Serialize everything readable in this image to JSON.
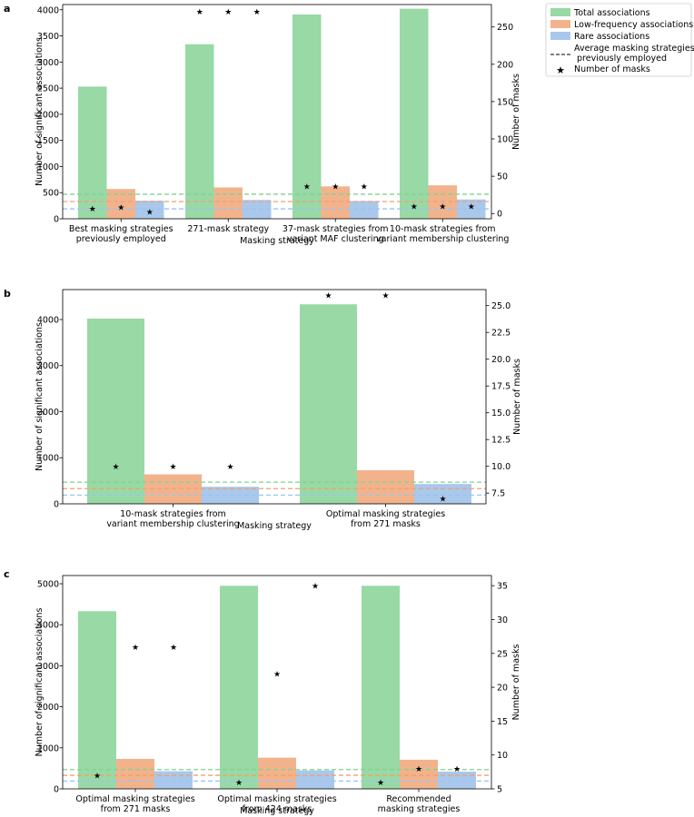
{
  "legend": {
    "total": "Total associations",
    "low": "Low-frequency associations",
    "rare": "Rare associations",
    "avg_line1": "Average masking strategies",
    "avg_line2": " previously employed",
    "masks": "Number of masks"
  },
  "colors": {
    "total": "#98d9a5",
    "low": "#f2b38c",
    "rare": "#a9c8ec",
    "avg_total": "#7fd38f",
    "avg_low": "#f0a070",
    "avg_rare": "#9cc3f0",
    "star": "#000000"
  },
  "chart_data": [
    {
      "type": "bar",
      "panel": "a",
      "xlabel": "Masking strategy",
      "ylabel": "Number of significant associations",
      "y2label": "Number of masks",
      "ylim": [
        0,
        4100
      ],
      "y2lim": [
        -7,
        280
      ],
      "yticks": [
        "0",
        "500",
        "1000",
        "1500",
        "2000",
        "2500",
        "3000",
        "3500",
        "4000"
      ],
      "y2ticks": [
        "0",
        "50",
        "100",
        "150",
        "200",
        "250"
      ],
      "categories": [
        [
          "Best masking strategies",
          "previously employed"
        ],
        [
          "271-mask strategy"
        ],
        [
          "37-mask strategies from",
          "variant MAF clustering"
        ],
        [
          "10-mask strategies from",
          "variant membership clustering"
        ]
      ],
      "series": [
        {
          "name": "Total associations",
          "key": "total",
          "values": [
            2530,
            3340,
            3910,
            4020
          ]
        },
        {
          "name": "Low-frequency associations",
          "key": "low",
          "values": [
            570,
            600,
            620,
            640
          ]
        },
        {
          "name": "Rare associations",
          "key": "rare",
          "values": [
            345,
            360,
            340,
            370
          ]
        }
      ],
      "masks": [
        [
          7,
          9,
          3
        ],
        [
          271,
          271,
          271
        ],
        [
          37,
          37,
          37
        ],
        [
          10,
          10,
          10
        ]
      ],
      "averages": {
        "total": 470,
        "low": 330,
        "rare": 190
      }
    },
    {
      "type": "bar",
      "panel": "b",
      "xlabel": "Masking strategy",
      "ylabel": "Number of significant associations",
      "y2label": "Number of masks",
      "ylim": [
        0,
        4650
      ],
      "y2lim": [
        6.5,
        26.5
      ],
      "yticks": [
        "0",
        "1000",
        "2000",
        "3000",
        "4000"
      ],
      "y2ticks": [
        "7.5",
        "10.0",
        "12.5",
        "15.0",
        "17.5",
        "20.0",
        "22.5",
        "25.0"
      ],
      "categories": [
        [
          "10-mask strategies from",
          "variant membership clustering"
        ],
        [
          "Optimal masking strategies",
          "from 271 masks"
        ]
      ],
      "series": [
        {
          "name": "Total associations",
          "key": "total",
          "values": [
            4020,
            4330
          ]
        },
        {
          "name": "Low-frequency associations",
          "key": "low",
          "values": [
            640,
            730
          ]
        },
        {
          "name": "Rare associations",
          "key": "rare",
          "values": [
            370,
            430
          ]
        }
      ],
      "masks": [
        [
          10,
          10,
          10
        ],
        [
          26,
          26,
          7
        ]
      ],
      "averages": {
        "total": 470,
        "low": 330,
        "rare": 190
      }
    },
    {
      "type": "bar",
      "panel": "c",
      "xlabel": "Masking strategy",
      "ylabel": "Number of significant associations",
      "y2label": "Number of masks",
      "ylim": [
        0,
        5200
      ],
      "y2lim": [
        5,
        36.5
      ],
      "yticks": [
        "0",
        "1000",
        "2000",
        "3000",
        "4000",
        "5000"
      ],
      "y2ticks": [
        "5",
        "10",
        "15",
        "20",
        "25",
        "30",
        "35"
      ],
      "categories": [
        [
          "Optimal masking strategies",
          "from 271 masks"
        ],
        [
          "Optimal masking strategies",
          "from 424 masks"
        ],
        [
          "Recommended",
          "masking strategies"
        ]
      ],
      "series": [
        {
          "name": "Total associations",
          "key": "total",
          "values": [
            4330,
            4950,
            4950
          ]
        },
        {
          "name": "Low-frequency associations",
          "key": "low",
          "values": [
            730,
            760,
            710
          ]
        },
        {
          "name": "Rare associations",
          "key": "rare",
          "values": [
            430,
            450,
            420
          ]
        }
      ],
      "masks": [
        [
          7,
          26,
          26
        ],
        [
          6,
          22,
          35
        ],
        [
          6,
          8,
          8
        ]
      ],
      "averages": {
        "total": 470,
        "low": 330,
        "rare": 190
      }
    }
  ]
}
